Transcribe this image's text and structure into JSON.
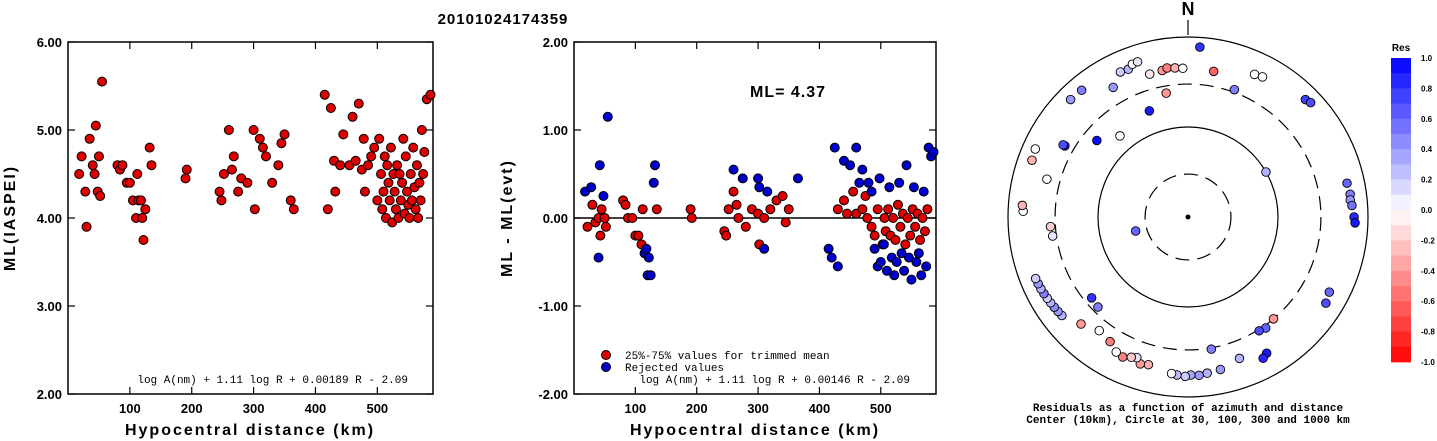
{
  "title": "20101024174359",
  "chart_data": [
    {
      "type": "scatter",
      "ylabel": "ML(IASPEI)",
      "xlabel": "Hypocentral distance (km)",
      "xlim": [
        0,
        590
      ],
      "ylim": [
        2.0,
        6.0
      ],
      "xticks": [
        "100",
        "200",
        "300",
        "400",
        "500"
      ],
      "xtick_values": [
        100,
        200,
        300,
        400,
        500
      ],
      "yticks": [
        "2.00",
        "3.00",
        "4.00",
        "5.00",
        "6.00"
      ],
      "ytick_values": [
        2,
        3,
        4,
        5,
        6
      ],
      "formula": "log A(nm) + 1.11 log R + 0.00189 R - 2.09",
      "marker_color": "#dd0000",
      "series": [
        {
          "x": [
            18,
            22,
            28,
            30,
            35,
            40,
            43,
            45,
            48,
            50,
            52,
            55,
            80,
            84,
            88,
            95,
            100,
            105,
            110,
            112,
            114,
            118,
            120,
            122,
            125,
            132,
            135,
            190,
            192,
            245,
            248,
            252,
            260,
            265,
            268,
            275,
            280,
            290,
            300,
            302,
            310,
            315,
            320,
            330,
            340,
            345,
            350,
            360,
            365,
            415,
            420,
            425,
            430,
            432,
            440,
            445,
            455,
            460,
            465,
            470,
            475,
            478,
            480,
            485,
            490,
            495,
            500,
            503,
            506,
            508,
            510,
            512,
            514,
            516,
            518,
            520,
            522,
            524,
            526,
            528,
            530,
            532,
            534,
            536,
            538,
            540,
            542,
            544,
            546,
            548,
            550,
            552,
            554,
            556,
            558,
            560,
            562,
            564,
            566,
            568,
            570,
            572,
            574,
            576,
            580,
            586
          ],
          "y": [
            4.5,
            4.7,
            4.3,
            3.9,
            4.9,
            4.6,
            4.5,
            5.05,
            4.3,
            4.7,
            4.25,
            5.55,
            4.6,
            4.55,
            4.6,
            4.4,
            4.4,
            4.2,
            4.0,
            4.5,
            4.2,
            4.2,
            4.0,
            3.75,
            4.1,
            4.8,
            4.6,
            4.45,
            4.55,
            4.3,
            4.2,
            4.5,
            5.0,
            4.55,
            4.7,
            4.3,
            4.45,
            4.4,
            5.0,
            4.1,
            4.9,
            4.8,
            4.7,
            4.4,
            4.6,
            4.85,
            4.95,
            4.2,
            4.1,
            5.4,
            4.1,
            5.25,
            4.65,
            4.3,
            4.6,
            4.95,
            4.6,
            5.15,
            4.65,
            5.3,
            4.55,
            4.9,
            4.3,
            4.6,
            4.7,
            4.8,
            4.2,
            4.9,
            4.5,
            4.1,
            4.3,
            4.7,
            4.0,
            4.6,
            4.4,
            4.2,
            4.8,
            3.95,
            4.5,
            4.3,
            4.1,
            4.6,
            4.0,
            4.5,
            4.2,
            4.4,
            4.9,
            4.05,
            4.7,
            4.3,
            4.15,
            4.0,
            4.5,
            4.2,
            4.8,
            4.35,
            4.1,
            4.6,
            4.0,
            4.4,
            4.2,
            5.0,
            4.5,
            4.75,
            5.35,
            5.4
          ]
        }
      ]
    },
    {
      "type": "scatter",
      "ylabel": "ML - ML(evt)",
      "xlabel": "Hypocentral distance (km)",
      "xlim": [
        0,
        590
      ],
      "ylim": [
        -2.0,
        2.0
      ],
      "xticks": [
        "100",
        "200",
        "300",
        "400",
        "500"
      ],
      "xtick_values": [
        100,
        200,
        300,
        400,
        500
      ],
      "yticks": [
        "-2.00",
        "-1.00",
        "0.00",
        "1.00",
        "2.00"
      ],
      "ytick_values": [
        -2,
        -1,
        0,
        1,
        2
      ],
      "annotation": "ML= 4.37",
      "formula": "log A(nm) + 1.11 log R + 0.00146 R - 2.09",
      "zero_line": 0,
      "series": [
        {
          "name": "25%-75% values for trimmed mean",
          "color": "#dd0000",
          "x": [
            22,
            30,
            35,
            40,
            43,
            45,
            50,
            52,
            80,
            84,
            88,
            95,
            100,
            105,
            110,
            112,
            135,
            190,
            192,
            245,
            248,
            252,
            260,
            265,
            268,
            280,
            290,
            300,
            302,
            310,
            320,
            330,
            340,
            345,
            350,
            430,
            440,
            445,
            455,
            460,
            470,
            475,
            478,
            485,
            490,
            495,
            503,
            506,
            508,
            512,
            516,
            520,
            524,
            528,
            532,
            536,
            540,
            544,
            548,
            552,
            556,
            560,
            564,
            568,
            572,
            576
          ],
          "y": [
            -0.1,
            0.15,
            -0.05,
            0.0,
            -0.2,
            0.1,
            0.0,
            -0.1,
            0.2,
            0.15,
            0.0,
            0.0,
            -0.2,
            -0.2,
            -0.3,
            0.1,
            0.1,
            0.1,
            0.0,
            -0.15,
            -0.2,
            0.1,
            0.3,
            0.15,
            0.0,
            -0.1,
            0.1,
            0.05,
            -0.3,
            0.0,
            0.1,
            0.2,
            0.25,
            -0.05,
            0.1,
            0.1,
            0.2,
            0.05,
            0.3,
            0.05,
            0.1,
            0.25,
            0.0,
            -0.1,
            -0.2,
            0.1,
            -0.3,
            0.0,
            -0.15,
            0.1,
            -0.2,
            0.0,
            -0.25,
            0.15,
            -0.1,
            0.05,
            -0.3,
            0.0,
            -0.2,
            0.1,
            -0.1,
            0.05,
            -0.25,
            0.0,
            -0.15,
            0.1
          ]
        },
        {
          "name": "Rejected values",
          "color": "#0000cc",
          "x": [
            18,
            28,
            40,
            42,
            48,
            55,
            115,
            118,
            120,
            122,
            125,
            130,
            132,
            260,
            275,
            300,
            302,
            310,
            315,
            365,
            415,
            420,
            425,
            430,
            440,
            450,
            460,
            465,
            470,
            480,
            485,
            490,
            495,
            498,
            500,
            505,
            510,
            514,
            518,
            522,
            526,
            530,
            534,
            538,
            542,
            546,
            550,
            554,
            558,
            562,
            566,
            570,
            574,
            578,
            582,
            586
          ],
          "y": [
            0.3,
            0.35,
            -0.45,
            0.6,
            0.25,
            1.15,
            -0.4,
            -0.35,
            -0.65,
            -0.45,
            -0.65,
            0.4,
            0.6,
            0.55,
            0.45,
            0.45,
            0.35,
            -0.35,
            0.3,
            0.45,
            -0.35,
            -0.45,
            0.8,
            -0.55,
            0.65,
            0.6,
            0.8,
            0.4,
            0.55,
            0.4,
            0.3,
            -0.35,
            -0.55,
            0.45,
            -0.5,
            -0.3,
            -0.6,
            0.35,
            -0.45,
            -0.65,
            -0.5,
            0.4,
            -0.4,
            -0.6,
            0.6,
            -0.45,
            -0.7,
            0.35,
            -0.5,
            -0.4,
            -0.65,
            0.3,
            -0.55,
            0.8,
            0.7,
            0.75
          ]
        }
      ]
    },
    {
      "type": "scatter",
      "title": "N",
      "caption_line1": "Residuals as a function of azimuth and distance",
      "caption_line2": "Center (10km), Circle at 30, 100, 300 and 1000 km",
      "colorbar_title": "Res",
      "colorbar_ticks": [
        "1.0",
        "0.8",
        "0.6",
        "0.4",
        "0.2",
        "0.0",
        "-0.2",
        "-0.4",
        "-0.6",
        "-0.8",
        "-1.0"
      ],
      "colorbar_values": [
        1.0,
        0.8,
        0.6,
        0.4,
        0.2,
        0.0,
        -0.2,
        -0.4,
        -0.6,
        -0.8,
        -1.0
      ],
      "rings_km": [
        30,
        100,
        300,
        1000
      ],
      "stations": [
        {
          "az": 4,
          "dist": 780,
          "res": 0.8
        },
        {
          "az": 25,
          "dist": 560,
          "res": 0.0
        },
        {
          "az": 28,
          "dist": 580,
          "res": 0.0
        },
        {
          "az": 45,
          "dist": 700,
          "res": 0.75
        },
        {
          "az": 47,
          "dist": 730,
          "res": 0.7
        },
        {
          "az": 78,
          "dist": 640,
          "res": 0.6
        },
        {
          "az": 82,
          "dist": 660,
          "res": 0.5
        },
        {
          "az": 84,
          "dist": 650,
          "res": 0.4
        },
        {
          "az": 86,
          "dist": 670,
          "res": 0.55
        },
        {
          "az": 90,
          "dist": 700,
          "res": 0.85
        },
        {
          "az": 92,
          "dist": 720,
          "res": 0.9
        },
        {
          "az": 118,
          "dist": 600,
          "res": 0.6
        },
        {
          "az": 122,
          "dist": 640,
          "res": 0.7
        },
        {
          "az": 150,
          "dist": 560,
          "res": 0.9
        },
        {
          "az": 152,
          "dist": 600,
          "res": 0.85
        },
        {
          "az": 160,
          "dist": 470,
          "res": 0.3
        },
        {
          "az": 168,
          "dist": 540,
          "res": 0.4
        },
        {
          "az": 173,
          "dist": 560,
          "res": 0.3
        },
        {
          "az": 176,
          "dist": 580,
          "res": 0.4
        },
        {
          "az": 179,
          "dist": 570,
          "res": 0.35
        },
        {
          "az": 181,
          "dist": 590,
          "res": 0.2
        },
        {
          "az": 184,
          "dist": 575,
          "res": 0.25
        },
        {
          "az": 186,
          "dist": 560,
          "res": 0.0
        },
        {
          "az": 195,
          "dist": 500,
          "res": -0.3
        },
        {
          "az": 198,
          "dist": 520,
          "res": -0.4
        },
        {
          "az": 200,
          "dist": 460,
          "res": 0.1
        },
        {
          "az": 202,
          "dist": 480,
          "res": -0.2
        },
        {
          "az": 205,
          "dist": 520,
          "res": -0.5
        },
        {
          "az": 208,
          "dist": 500,
          "res": 0.0
        },
        {
          "az": 212,
          "dist": 430,
          "res": -0.5
        },
        {
          "az": 218,
          "dist": 400,
          "res": 0.0
        },
        {
          "az": 225,
          "dist": 480,
          "res": -0.4
        },
        {
          "az": 232,
          "dist": 600,
          "res": 0.3
        },
        {
          "az": 234,
          "dist": 610,
          "res": 0.4
        },
        {
          "az": 236,
          "dist": 620,
          "res": 0.45
        },
        {
          "az": 238,
          "dist": 630,
          "res": 0.3
        },
        {
          "az": 240,
          "dist": 640,
          "res": 0.2
        },
        {
          "az": 242,
          "dist": 650,
          "res": 0.5
        },
        {
          "az": 244,
          "dist": 660,
          "res": 0.3
        },
        {
          "az": 246,
          "dist": 665,
          "res": 0.4
        },
        {
          "az": 248,
          "dist": 670,
          "res": 0.2
        },
        {
          "az": 262,
          "dist": 330,
          "res": 0.1
        },
        {
          "az": 266,
          "dist": 340,
          "res": -0.2
        },
        {
          "az": 272,
          "dist": 680,
          "res": 0.0
        },
        {
          "az": 274,
          "dist": 700,
          "res": -0.3
        },
        {
          "az": 285,
          "dist": 420,
          "res": 0.0
        },
        {
          "az": 290,
          "dist": 700,
          "res": -0.3
        },
        {
          "az": 294,
          "dist": 720,
          "res": 0.0
        },
        {
          "az": 300,
          "dist": 380,
          "res": 0.9
        },
        {
          "az": 315,
          "dist": 700,
          "res": 0.4
        },
        {
          "az": 320,
          "dist": 690,
          "res": 0.5
        },
        {
          "az": 330,
          "dist": 460,
          "res": 0.4
        },
        {
          "az": 335,
          "dist": 600,
          "res": 0.2
        },
        {
          "az": 338,
          "dist": 590,
          "res": 0.3
        },
        {
          "az": 340,
          "dist": 640,
          "res": 0.0
        },
        {
          "az": 342,
          "dist": 650,
          "res": 0.1
        },
        {
          "az": 345,
          "dist": 440,
          "res": -0.1
        },
        {
          "az": 350,
          "dist": 450,
          "res": -0.4
        },
        {
          "az": 352,
          "dist": 470,
          "res": -0.5
        },
        {
          "az": 355,
          "dist": 460,
          "res": -0.3
        },
        {
          "az": 358,
          "dist": 450,
          "res": 0.0
        },
        {
          "az": 10,
          "dist": 440,
          "res": -0.6
        },
        {
          "az": 20,
          "dist": 320,
          "res": 0.5
        },
        {
          "az": 60,
          "dist": 100,
          "res": 0.3
        },
        {
          "az": 140,
          "dist": 300,
          "res": -0.4
        },
        {
          "az": 145,
          "dist": 320,
          "res": 0.6
        },
        {
          "az": 148,
          "dist": 310,
          "res": 0.7
        },
        {
          "az": 170,
          "dist": 310,
          "res": 0.5
        },
        {
          "az": 225,
          "dist": 260,
          "res": 0.5
        },
        {
          "az": 230,
          "dist": 250,
          "res": 0.8
        },
        {
          "az": 255,
          "dist": 40,
          "res": 0.6
        },
        {
          "az": 340,
          "dist": 180,
          "res": 0.9
        },
        {
          "az": 320,
          "dist": 150,
          "res": 0.0
        },
        {
          "az": 300,
          "dist": 400,
          "res": 0.7
        },
        {
          "az": 350,
          "dist": 250,
          "res": -0.4
        },
        {
          "az": 310,
          "dist": 210,
          "res": 0.95
        }
      ]
    }
  ]
}
